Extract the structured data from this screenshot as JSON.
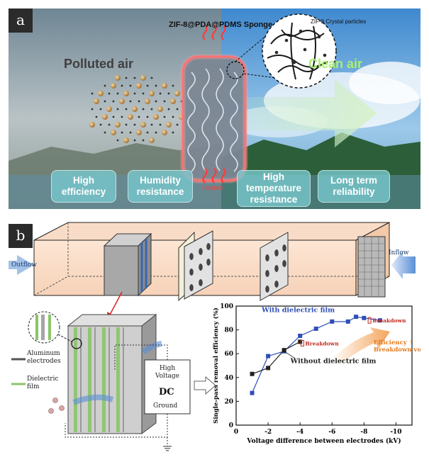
{
  "panel_a": {
    "letter": "a",
    "polluted_air": "Polluted air",
    "clean_air": "Clean air",
    "sponge_label": "ZIF-8@PDA@PDMS Sponge",
    "crystal_label": "ZIF-8 Crystal particles",
    "heated_label": "Heated",
    "features": [
      "High efficiency",
      "Humidity resistance",
      "High temperature resistance",
      "Long term reliability"
    ]
  },
  "panel_b": {
    "letter": "b",
    "outflow": "Outflow",
    "inflow": "Inflow",
    "aluminum_label": "Aluminum electrodes",
    "dielectric_label": "Dielectric film",
    "hv_label": "High Voltage",
    "dc_label": "DC",
    "ground_label": "Ground"
  },
  "chart_data": {
    "type": "line",
    "xlabel": "Voltage difference between electrodes (kV)",
    "ylabel": "Single-pass removal efficiency (%)",
    "xlim": [
      0,
      -11
    ],
    "ylim": [
      0,
      100
    ],
    "x_ticks": [
      "0",
      "-2",
      "-4",
      "-6",
      "-8",
      "-10"
    ],
    "y_ticks": [
      "0",
      "20",
      "40",
      "60",
      "80",
      "100"
    ],
    "series": [
      {
        "name": "With dielectric film",
        "color": "#2e4fb8",
        "marker": "square",
        "x": [
          -1,
          -2,
          -3,
          -4,
          -5,
          -6,
          -7,
          -7.5,
          -8,
          -9
        ],
        "y": [
          27,
          58,
          62,
          75,
          81,
          87,
          87,
          91,
          90,
          88
        ]
      },
      {
        "name": "Without dielectric film",
        "color": "#222222",
        "marker": "square",
        "x": [
          -1,
          -2,
          -3,
          -4
        ],
        "y": [
          43,
          48,
          63,
          70
        ]
      }
    ],
    "annotations": [
      {
        "text": "Breakdown",
        "x": -9,
        "y": 88
      },
      {
        "text": "Breakdown",
        "x": -4,
        "y": 70
      },
      {
        "text": "Efficiency ↑",
        "x": -9,
        "y": 68
      },
      {
        "text": "Breakdown voltage",
        "x": -9,
        "y": 62
      }
    ]
  }
}
